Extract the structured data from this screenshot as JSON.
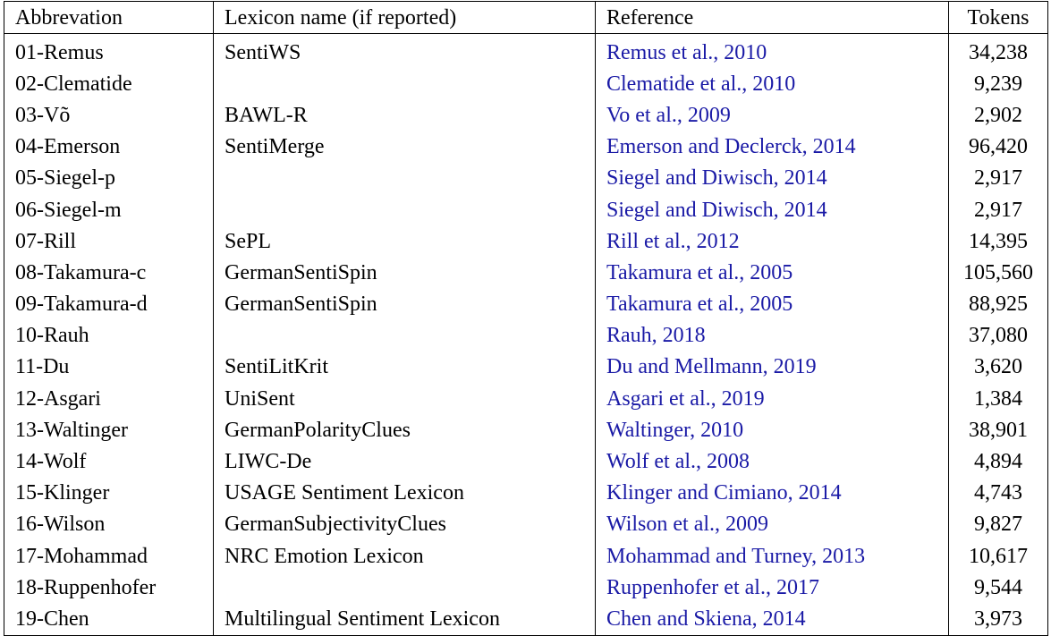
{
  "headers": {
    "abbreviation": "Abbrevation",
    "lexicon": "Lexicon name (if reported)",
    "reference": "Reference",
    "tokens": "Tokens"
  },
  "colors": {
    "reference_link": "#1a1aa6",
    "text": "#000000"
  },
  "rows": [
    {
      "abbr": "01-Remus",
      "lexicon": "SentiWS",
      "ref": "Remus et al., 2010",
      "tokens": "34,238"
    },
    {
      "abbr": "02-Clematide",
      "lexicon": "",
      "ref": "Clematide et al., 2010",
      "tokens": "9,239"
    },
    {
      "abbr": "03-Võ",
      "lexicon": "BAWL-R",
      "ref": "Vo et al., 2009",
      "tokens": "2,902"
    },
    {
      "abbr": "04-Emerson",
      "lexicon": "SentiMerge",
      "ref": "Emerson and Declerck, 2014",
      "tokens": "96,420"
    },
    {
      "abbr": "05-Siegel-p",
      "lexicon": "",
      "ref": "Siegel and Diwisch, 2014",
      "tokens": "2,917"
    },
    {
      "abbr": "06-Siegel-m",
      "lexicon": "",
      "ref": "Siegel and Diwisch, 2014",
      "tokens": "2,917"
    },
    {
      "abbr": "07-Rill",
      "lexicon": "SePL",
      "ref": "Rill et al., 2012",
      "tokens": "14,395"
    },
    {
      "abbr": "08-Takamura-c",
      "lexicon": "GermanSentiSpin",
      "ref": "Takamura et al., 2005",
      "tokens": "105,560"
    },
    {
      "abbr": "09-Takamura-d",
      "lexicon": "GermanSentiSpin",
      "ref": "Takamura et al., 2005",
      "tokens": "88,925"
    },
    {
      "abbr": "10-Rauh",
      "lexicon": "",
      "ref": "Rauh, 2018",
      "tokens": "37,080"
    },
    {
      "abbr": "11-Du",
      "lexicon": "SentiLitKrit",
      "ref": "Du and Mellmann, 2019",
      "tokens": "3,620"
    },
    {
      "abbr": "12-Asgari",
      "lexicon": "UniSent",
      "ref": "Asgari et al., 2019",
      "tokens": "1,384"
    },
    {
      "abbr": "13-Waltinger",
      "lexicon": "GermanPolarityClues",
      "ref": "Waltinger, 2010",
      "tokens": "38,901"
    },
    {
      "abbr": "14-Wolf",
      "lexicon": "LIWC-De",
      "ref": "Wolf et al., 2008",
      "tokens": "4,894"
    },
    {
      "abbr": "15-Klinger",
      "lexicon": "USAGE Sentiment Lexicon",
      "ref": "Klinger and Cimiano, 2014",
      "tokens": "4,743"
    },
    {
      "abbr": "16-Wilson",
      "lexicon": "GermanSubjectivityClues",
      "ref": "Wilson et al., 2009",
      "tokens": "9,827"
    },
    {
      "abbr": "17-Mohammad",
      "lexicon": "NRC Emotion Lexicon",
      "ref": "Mohammad and Turney, 2013",
      "tokens": "10,617"
    },
    {
      "abbr": "18-Ruppenhofer",
      "lexicon": "",
      "ref": "Ruppenhofer et al., 2017",
      "tokens": "9,544"
    },
    {
      "abbr": "19-Chen",
      "lexicon": "Multilingual Sentiment Lexicon",
      "ref": "Chen and Skiena, 2014",
      "tokens": "3,973"
    }
  ]
}
